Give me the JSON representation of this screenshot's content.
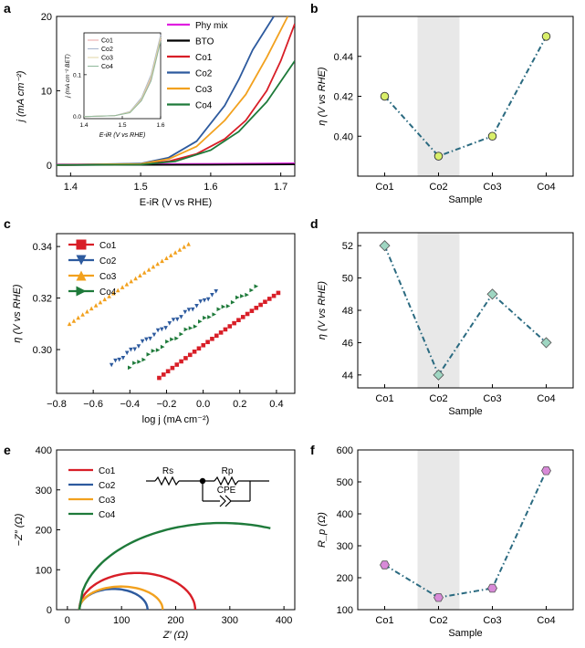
{
  "colors": {
    "phy_mix": "#e01ee0",
    "bto": "#000000",
    "co1": "#d81e27",
    "co2": "#2d5a9e",
    "co3": "#f2a11e",
    "co4": "#1e7a3a",
    "teal": "#2a6a80",
    "shade": "#e8e8e8",
    "marker_b": "#d9ef6a",
    "marker_d": "#9fd6c2",
    "marker_f": "#d88ad8",
    "inset_co1": "#e8a6a6",
    "inset_co2": "#a6b3cc",
    "inset_co3": "#e0d5a4",
    "inset_co4": "#8fb89a"
  },
  "chart_data": [
    {
      "panel": "a",
      "type": "line",
      "xlabel": "E-iR (V vs RHE)",
      "ylabel": "j (mA cm⁻²)",
      "xlim": [
        1.38,
        1.72
      ],
      "ylim": [
        -1.5,
        20
      ],
      "xticks": [
        "1.4",
        "1.5",
        "1.6",
        "1.7"
      ],
      "yticks": [
        "0",
        "10",
        "20"
      ],
      "legend": [
        "Phy mix",
        "BTO",
        "Co1",
        "Co2",
        "Co3",
        "Co4"
      ],
      "series": [
        {
          "name": "Phy mix",
          "x": [
            1.38,
            1.5,
            1.6,
            1.72
          ],
          "y": [
            0.05,
            0.08,
            0.12,
            0.2
          ]
        },
        {
          "name": "BTO",
          "x": [
            1.38,
            1.5,
            1.6,
            1.72
          ],
          "y": [
            0.0,
            0.02,
            0.04,
            0.08
          ]
        },
        {
          "name": "Co1",
          "x": [
            1.38,
            1.5,
            1.54,
            1.58,
            1.62,
            1.65,
            1.68,
            1.7,
            1.72
          ],
          "y": [
            0,
            0.1,
            0.5,
            1.5,
            3.5,
            6.0,
            10.0,
            14.0,
            19.0
          ]
        },
        {
          "name": "Co2",
          "x": [
            1.38,
            1.5,
            1.54,
            1.58,
            1.62,
            1.64,
            1.66,
            1.69
          ],
          "y": [
            0,
            0.2,
            1.0,
            3.2,
            8.0,
            11.5,
            15.5,
            20.0
          ]
        },
        {
          "name": "Co3",
          "x": [
            1.38,
            1.5,
            1.54,
            1.58,
            1.62,
            1.65,
            1.68,
            1.71
          ],
          "y": [
            0,
            0.15,
            0.8,
            2.5,
            6.0,
            9.5,
            14.5,
            20.0
          ]
        },
        {
          "name": "Co4",
          "x": [
            1.38,
            1.5,
            1.55,
            1.6,
            1.64,
            1.68,
            1.72
          ],
          "y": [
            0,
            0.05,
            0.5,
            2.0,
            4.5,
            8.5,
            14.0
          ]
        }
      ],
      "inset": {
        "xlabel": "E-iR (V vs RHE)",
        "ylabel": "j (mA cm⁻² BET)",
        "xlim": [
          1.4,
          1.6
        ],
        "ylim": [
          -0.005,
          0.2
        ],
        "xticks": [
          "1.4",
          "1.5",
          "1.6"
        ],
        "yticks": [
          "0.0",
          "0.1"
        ],
        "legend": [
          "Co1",
          "Co2",
          "Co3",
          "Co4"
        ],
        "series": [
          {
            "name": "Co1",
            "x": [
              1.4,
              1.48,
              1.52,
              1.55,
              1.575,
              1.6
            ],
            "y": [
              0,
              0.002,
              0.01,
              0.04,
              0.09,
              0.185
            ]
          },
          {
            "name": "Co2",
            "x": [
              1.4,
              1.48,
              1.52,
              1.55,
              1.575,
              1.6
            ],
            "y": [
              0,
              0.002,
              0.012,
              0.045,
              0.1,
              0.195
            ]
          },
          {
            "name": "Co3",
            "x": [
              1.4,
              1.48,
              1.52,
              1.55,
              1.575,
              1.6
            ],
            "y": [
              0,
              0.002,
              0.011,
              0.042,
              0.095,
              0.19
            ]
          },
          {
            "name": "Co4",
            "x": [
              1.4,
              1.48,
              1.52,
              1.55,
              1.575,
              1.6
            ],
            "y": [
              0,
              0.002,
              0.009,
              0.038,
              0.085,
              0.18
            ]
          }
        ]
      }
    },
    {
      "panel": "b",
      "type": "scatter",
      "xlabel": "Sample",
      "ylabel": "η (V vs RHE)",
      "categories": [
        "Co1",
        "Co2",
        "Co3",
        "Co4"
      ],
      "values": [
        0.42,
        0.39,
        0.4,
        0.45
      ],
      "ylim": [
        0.38,
        0.46
      ],
      "yticks": [
        "0.40",
        "0.42",
        "0.44"
      ],
      "highlight": "Co2"
    },
    {
      "panel": "c",
      "type": "scatter",
      "xlabel": "log j (mA cm⁻²)",
      "ylabel": "η (V vs RHE)",
      "xlim": [
        -0.8,
        0.5
      ],
      "ylim": [
        0.283,
        0.345
      ],
      "xticks": [
        "−0.8",
        "−0.6",
        "−0.4",
        "−0.2",
        "0.0",
        "0.2",
        "0.4"
      ],
      "yticks": [
        "0.30",
        "0.32",
        "0.34"
      ],
      "legend": [
        "Co1",
        "Co2",
        "Co3",
        "Co4"
      ],
      "series": [
        {
          "name": "Co1",
          "x_start": -0.24,
          "x_end": 0.41,
          "y_start": 0.289,
          "y_end": 0.322
        },
        {
          "name": "Co2",
          "x_start": -0.5,
          "x_end": 0.07,
          "y_start": 0.294,
          "y_end": 0.322
        },
        {
          "name": "Co3",
          "x_start": -0.73,
          "x_end": -0.08,
          "y_start": 0.31,
          "y_end": 0.341
        },
        {
          "name": "Co4",
          "x_start": -0.4,
          "x_end": 0.29,
          "y_start": 0.293,
          "y_end": 0.324
        }
      ]
    },
    {
      "panel": "d",
      "type": "scatter",
      "xlabel": "Sample",
      "ylabel": "η (V vs RHE)",
      "categories": [
        "Co1",
        "Co2",
        "Co3",
        "Co4"
      ],
      "values": [
        52,
        44,
        49,
        46
      ],
      "ylim": [
        43.2,
        52.8
      ],
      "yticks": [
        "44",
        "46",
        "48",
        "50",
        "52"
      ],
      "highlight": "Co2"
    },
    {
      "panel": "e",
      "type": "line",
      "xlabel": "Z′ (Ω)",
      "ylabel": "−Z″ (Ω)",
      "xlim": [
        -20,
        420
      ],
      "ylim": [
        0,
        400
      ],
      "xticks": [
        "0",
        "100",
        "200",
        "300",
        "400"
      ],
      "yticks": [
        "0",
        "100",
        "200",
        "300",
        "400"
      ],
      "legend": [
        "Co1",
        "Co2",
        "Co3",
        "Co4"
      ],
      "circuit": {
        "rs": "Rs",
        "rp": "Rp",
        "cpe": "CPE"
      },
      "series": [
        {
          "name": "Co1",
          "x0": 22,
          "x1": 236,
          "peak": 92
        },
        {
          "name": "Co2",
          "x0": 22,
          "x1": 148,
          "peak": 52
        },
        {
          "name": "Co3",
          "x0": 22,
          "x1": 176,
          "peak": 58
        },
        {
          "name": "Co4",
          "x0": 22,
          "x1": 375,
          "peak": 217,
          "end_y": 198
        }
      ]
    },
    {
      "panel": "f",
      "type": "scatter",
      "xlabel": "Sample",
      "ylabel": "R_p (Ω)",
      "categories": [
        "Co1",
        "Co2",
        "Co3",
        "Co4"
      ],
      "values": [
        240,
        138,
        167,
        535
      ],
      "ylim": [
        100,
        600
      ],
      "yticks": [
        "100",
        "200",
        "300",
        "400",
        "500",
        "600"
      ],
      "highlight": "Co2"
    }
  ]
}
